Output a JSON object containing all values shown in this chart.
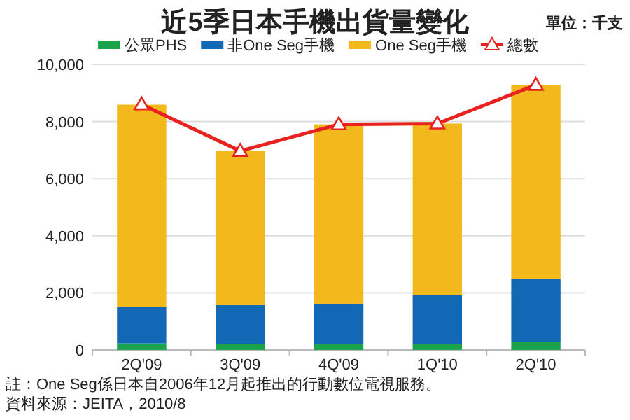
{
  "chart_data": {
    "type": "bar",
    "stacked": true,
    "title": "近5季日本手機出貨量變化",
    "ylabel": "單位：千支",
    "categories": [
      "2Q'09",
      "3Q'09",
      "4Q'09",
      "1Q'10",
      "2Q'10"
    ],
    "series": [
      {
        "name": "公眾PHS",
        "color": "#1aa34a",
        "values": [
          230,
          220,
          200,
          200,
          280
        ]
      },
      {
        "name": "非One Seg手機",
        "color": "#1168b4",
        "values": [
          1280,
          1350,
          1420,
          1720,
          2210
        ]
      },
      {
        "name": "One Seg手機",
        "color": "#f3b81c",
        "values": [
          7080,
          5400,
          6280,
          6010,
          6790
        ]
      },
      {
        "name": "總數",
        "type": "line",
        "color": "#e8231f",
        "marker": "triangle",
        "values": [
          8600,
          6970,
          7900,
          7930,
          9280
        ]
      }
    ],
    "ylim": [
      0,
      10000
    ],
    "yticks": [
      0,
      {
        "value": 2000,
        "label": "2,000"
      },
      {
        "value": 4000,
        "label": "4,000"
      },
      {
        "value": 6000,
        "label": "6,000"
      },
      {
        "value": 8000,
        "label": "8,000"
      },
      {
        "value": 10000,
        "label": "10,000"
      }
    ],
    "grid": "y",
    "legend": "top",
    "annotations": [
      "註：One Seg係日本自2006年12月起推出的行動數位電視服務。",
      "資料來源：JEITA，2010/8"
    ]
  }
}
